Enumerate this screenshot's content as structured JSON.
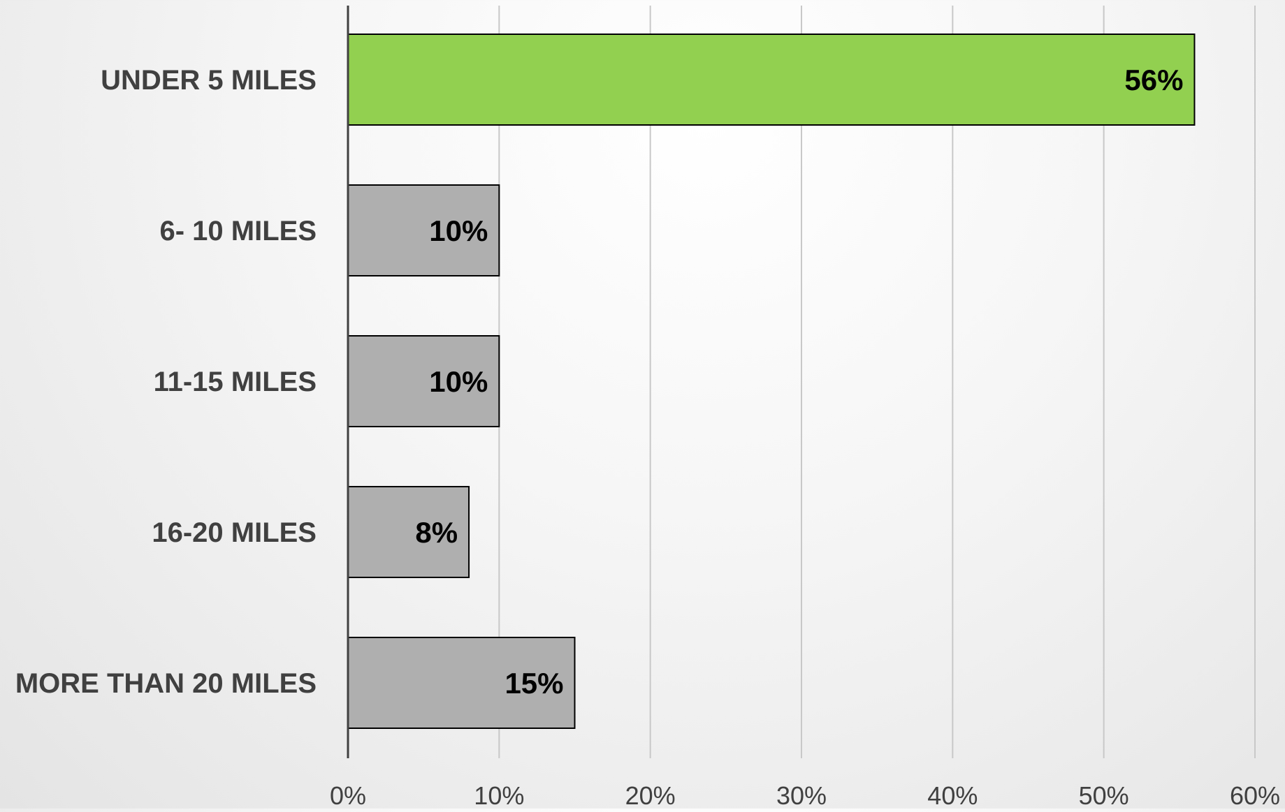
{
  "chart_data": {
    "type": "bar",
    "orientation": "horizontal",
    "title": "",
    "xlabel": "",
    "ylabel": "",
    "categories": [
      "UNDER 5 MILES",
      "6- 10 MILES",
      "11-15 MILES",
      "16-20 MILES",
      "MORE THAN 20 MILES"
    ],
    "values": [
      56,
      10,
      10,
      8,
      15
    ],
    "data_labels": [
      "56%",
      "10%",
      "10%",
      "8%",
      "15%"
    ],
    "xlim": [
      0,
      60
    ],
    "x_ticks": [
      0,
      10,
      20,
      30,
      40,
      50,
      60
    ],
    "x_tick_labels": [
      "0%",
      "10%",
      "20%",
      "30%",
      "40%",
      "50%",
      "60%"
    ],
    "grid": "vertical",
    "legend": "none",
    "highlight_index": 0,
    "colors": {
      "highlight": "#92d050",
      "bar": "#afafaf",
      "bar_edge": "#000000",
      "axis": "#404040",
      "gridline": "#c8c8c8"
    }
  }
}
